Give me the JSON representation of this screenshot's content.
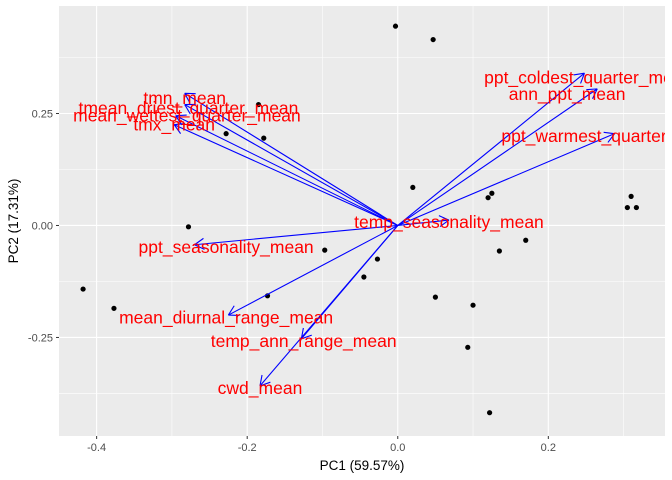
{
  "chart_data": {
    "type": "scatter",
    "title": "",
    "xlabel": "PC1 (59.57%)",
    "ylabel": "PC2 (17.31%)",
    "xlim": [
      -0.45,
      0.355
    ],
    "ylim": [
      -0.47,
      0.49
    ],
    "x_ticks": [
      -0.4,
      -0.2,
      0.0,
      0.2
    ],
    "x_tick_labels": [
      "-0.4",
      "-0.2",
      "0.0",
      "0.2"
    ],
    "y_ticks": [
      -0.25,
      0.0,
      0.25
    ],
    "y_tick_labels": [
      "-0.25",
      "0.00",
      "0.25"
    ],
    "grid": true,
    "colors": {
      "panel": "#ebebeb",
      "grid": "#ffffff",
      "points": "#000000",
      "arrows": "#0000ff",
      "labels": "#ff0000"
    },
    "points": [
      {
        "x": -0.003,
        "y": 0.445
      },
      {
        "x": 0.047,
        "y": 0.415
      },
      {
        "x": -0.185,
        "y": 0.27
      },
      {
        "x": -0.228,
        "y": 0.205
      },
      {
        "x": -0.178,
        "y": 0.195
      },
      {
        "x": -0.418,
        "y": -0.142
      },
      {
        "x": -0.377,
        "y": -0.185
      },
      {
        "x": -0.278,
        "y": -0.003
      },
      {
        "x": -0.173,
        "y": -0.157
      },
      {
        "x": -0.097,
        "y": -0.055
      },
      {
        "x": -0.027,
        "y": -0.075
      },
      {
        "x": -0.045,
        "y": -0.115
      },
      {
        "x": 0.02,
        "y": 0.085
      },
      {
        "x": 0.12,
        "y": 0.062
      },
      {
        "x": 0.125,
        "y": 0.072
      },
      {
        "x": 0.135,
        "y": -0.057
      },
      {
        "x": 0.17,
        "y": -0.033
      },
      {
        "x": 0.05,
        "y": -0.16
      },
      {
        "x": 0.1,
        "y": -0.178
      },
      {
        "x": 0.093,
        "y": -0.272
      },
      {
        "x": 0.122,
        "y": -0.418
      },
      {
        "x": 0.31,
        "y": 0.065
      },
      {
        "x": 0.305,
        "y": 0.04
      },
      {
        "x": 0.317,
        "y": 0.04
      }
    ],
    "loadings": [
      {
        "name": "tmn_mean",
        "x": -0.283,
        "y": 0.295,
        "label_x": -0.283,
        "label_y": 0.285
      },
      {
        "name": "tmean_driest_quarter_mean",
        "x": -0.283,
        "y": 0.27,
        "label_x": -0.278,
        "label_y": 0.262
      },
      {
        "name": "mean_wettest_quarter_mean",
        "x": -0.295,
        "y": 0.245,
        "label_x": -0.28,
        "label_y": 0.245
      },
      {
        "name": "tmx_mean",
        "x": -0.297,
        "y": 0.225,
        "label_x": -0.297,
        "label_y": 0.225
      },
      {
        "name": "ppt_coldest_quarter_mean",
        "x": 0.248,
        "y": 0.34,
        "label_x": 0.253,
        "label_y": 0.33
      },
      {
        "name": "ann_ppt_mean",
        "x": 0.265,
        "y": 0.305,
        "label_x": 0.225,
        "label_y": 0.293
      },
      {
        "name": "ppt_warmest_quarter_mean",
        "x": 0.288,
        "y": 0.205,
        "label_x": 0.283,
        "label_y": 0.2
      },
      {
        "name": "temp_seasonality_mean",
        "x": 0.068,
        "y": 0.012,
        "label_x": 0.068,
        "label_y": 0.008
      },
      {
        "name": "ppt_seasonality_mean",
        "x": -0.27,
        "y": -0.043,
        "label_x": -0.228,
        "label_y": -0.048
      },
      {
        "name": "mean_diurnal_range_mean",
        "x": -0.225,
        "y": -0.2,
        "label_x": -0.228,
        "label_y": -0.205
      },
      {
        "name": "temp_ann_range_mean",
        "x": -0.128,
        "y": -0.253,
        "label_x": -0.125,
        "label_y": -0.258
      },
      {
        "name": "cwd_mean",
        "x": -0.183,
        "y": -0.358,
        "label_x": -0.183,
        "label_y": -0.363
      }
    ]
  }
}
